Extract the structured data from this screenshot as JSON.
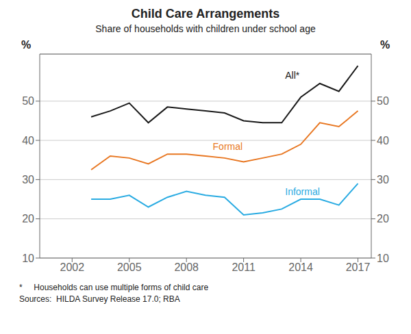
{
  "chart_data": {
    "type": "line",
    "title": "Child Care Arrangements",
    "subtitle": "Share of households with children under school age",
    "ylabel": "%",
    "y2label": "%",
    "footnotes": [
      "*     Households can use multiple forms of child care",
      "Sources:  HILDA Survey Release 17.0; RBA"
    ],
    "x": [
      2003,
      2004,
      2005,
      2006,
      2007,
      2008,
      2009,
      2010,
      2011,
      2012,
      2013,
      2014,
      2015,
      2016,
      2017
    ],
    "series": [
      {
        "name": "All*",
        "color": "#1a1a1a",
        "values": [
          46.0,
          47.5,
          49.5,
          44.5,
          48.5,
          48.0,
          47.5,
          47.0,
          45.0,
          44.5,
          44.5,
          51.0,
          54.5,
          52.5,
          59.0
        ]
      },
      {
        "name": "Formal",
        "color": "#E87722",
        "values": [
          32.5,
          36.0,
          35.5,
          34.0,
          36.5,
          36.5,
          36.0,
          35.5,
          34.5,
          35.5,
          36.5,
          39.0,
          44.5,
          43.5,
          47.5
        ]
      },
      {
        "name": "Informal",
        "color": "#29ABE2",
        "values": [
          25.0,
          25.0,
          26.0,
          23.0,
          25.5,
          27.0,
          26.0,
          25.5,
          21.0,
          21.5,
          22.5,
          25.0,
          25.0,
          23.5,
          29.0
        ]
      }
    ],
    "xlim": [
      2000.3,
      2017.7
    ],
    "xticks": [
      2002,
      2005,
      2008,
      2011,
      2014,
      2017
    ],
    "ylim": [
      10,
      62
    ],
    "yticks": [
      10,
      20,
      30,
      40,
      50
    ],
    "y2lim": [
      10,
      62
    ],
    "y2ticks": [
      10,
      20,
      30,
      40,
      50
    ],
    "grid": true,
    "annotations": [
      {
        "text": "All*",
        "x": 2013.0,
        "y": 56.5,
        "color": "#1a1a1a"
      },
      {
        "text": "Formal",
        "x": 2009.2,
        "y": 38.5,
        "color": "#E87722"
      },
      {
        "text": "Informal",
        "x": 2013.0,
        "y": 27.0,
        "color": "#29ABE2"
      }
    ]
  }
}
